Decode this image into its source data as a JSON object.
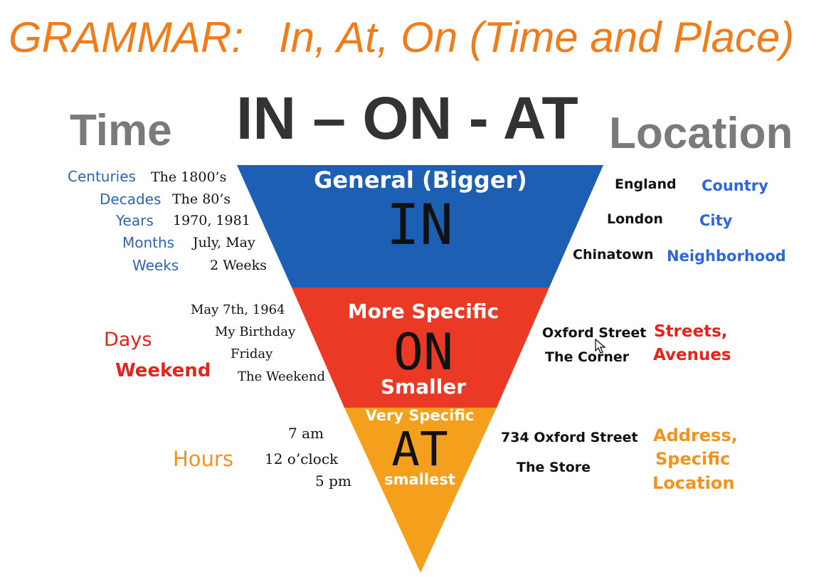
{
  "title": {
    "part1": "GRAMMAR:",
    "part2": "In, At, On (Time and Place)"
  },
  "main_heading": "IN – ON - AT",
  "time_heading": "Time",
  "location_heading": "Location",
  "colors": {
    "title": "#f07c1a",
    "in": "#1d5fb3",
    "on": "#ea3a26",
    "at": "#f4a01c"
  },
  "pyramid": {
    "in": {
      "caption": "General (Bigger)",
      "word": "IN"
    },
    "on": {
      "caption_top": "More Specific",
      "word": "ON",
      "caption_bottom": "Smaller"
    },
    "at": {
      "caption_top": "Very Specific",
      "word": "AT",
      "caption_bottom": "smallest"
    }
  },
  "time_in": {
    "labels": [
      "Centuries",
      "Decades",
      "Years",
      "Months",
      "Weeks"
    ],
    "examples": [
      "The 1800’s",
      "The 80’s",
      "1970, 1981",
      "July, May",
      "2 Weeks"
    ]
  },
  "time_on": {
    "label_line1": "Days",
    "label_line2": "Weekend",
    "examples": [
      "May 7th, 1964",
      "My Birthday",
      "Friday",
      "The Weekend"
    ]
  },
  "time_at": {
    "label": "Hours",
    "examples": [
      "7 am",
      "12 o’clock",
      "5 pm"
    ]
  },
  "loc_in": {
    "places": [
      "England",
      "London",
      "Chinatown"
    ],
    "labels": [
      "Country",
      "City",
      "Neighborhood"
    ]
  },
  "loc_on": {
    "places": [
      "Oxford Street",
      "The Corner"
    ],
    "label_line1": "Streets,",
    "label_line2": "Avenues"
  },
  "loc_at": {
    "places": [
      "734 Oxford Street",
      "The Store"
    ],
    "label_line1": "Address,",
    "label_line2": "Specific",
    "label_line3": "Location"
  }
}
